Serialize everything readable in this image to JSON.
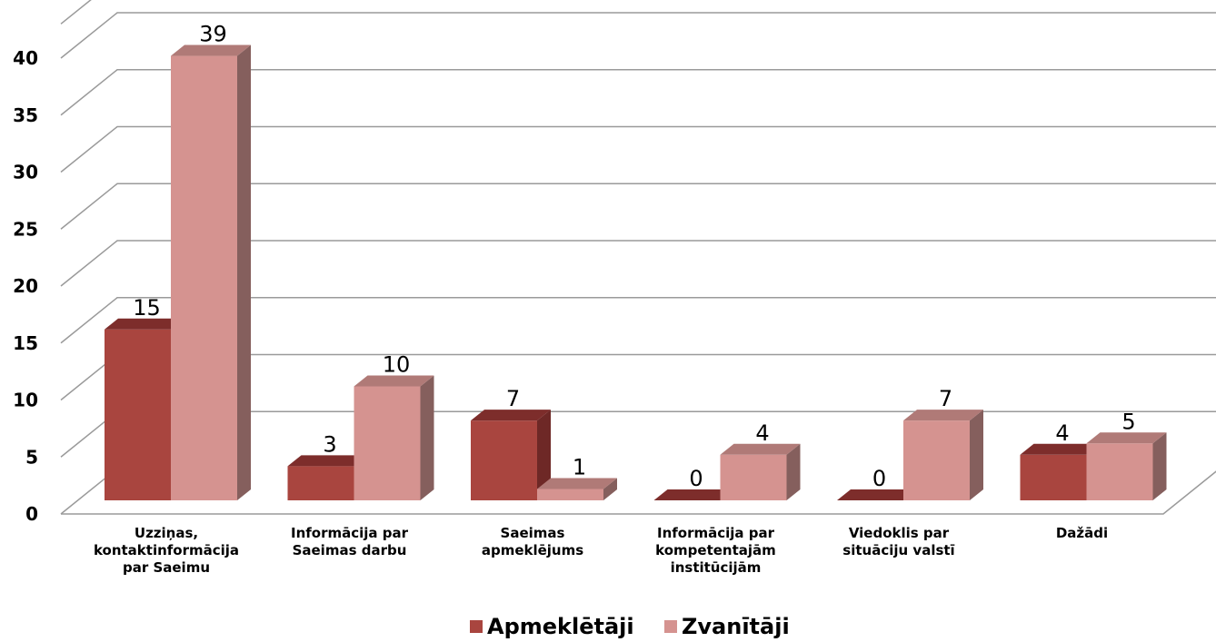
{
  "chart_data": {
    "type": "bar",
    "categories": [
      [
        "Uzziņas,",
        "kontaktinformācija",
        "par Saeimu"
      ],
      [
        "Informācija par",
        "Saeimas darbu"
      ],
      [
        "Saeimas",
        "apmeklējums"
      ],
      [
        "Informācija par",
        "kompetentajām",
        "institūcijām"
      ],
      [
        "Viedoklis par",
        "situāciju valstī"
      ],
      [
        "Dažādi"
      ]
    ],
    "series": [
      {
        "name": "Apmeklētāji",
        "values": [
          15,
          3,
          7,
          0,
          0,
          4
        ],
        "color": "#a9453f",
        "top_color": "#7d2d2b",
        "side_color": "#6e2826"
      },
      {
        "name": "Zvanītāji",
        "values": [
          39,
          10,
          1,
          4,
          7,
          5
        ],
        "color": "#d59390",
        "top_color": "#b07a77",
        "side_color": "#855f5d"
      }
    ],
    "y_ticks": [
      0,
      5,
      10,
      15,
      20,
      25,
      30,
      35,
      40
    ],
    "ylim": [
      0,
      43
    ],
    "grid": true,
    "legend": "bottom",
    "title": "",
    "xlabel": "",
    "ylabel": ""
  }
}
